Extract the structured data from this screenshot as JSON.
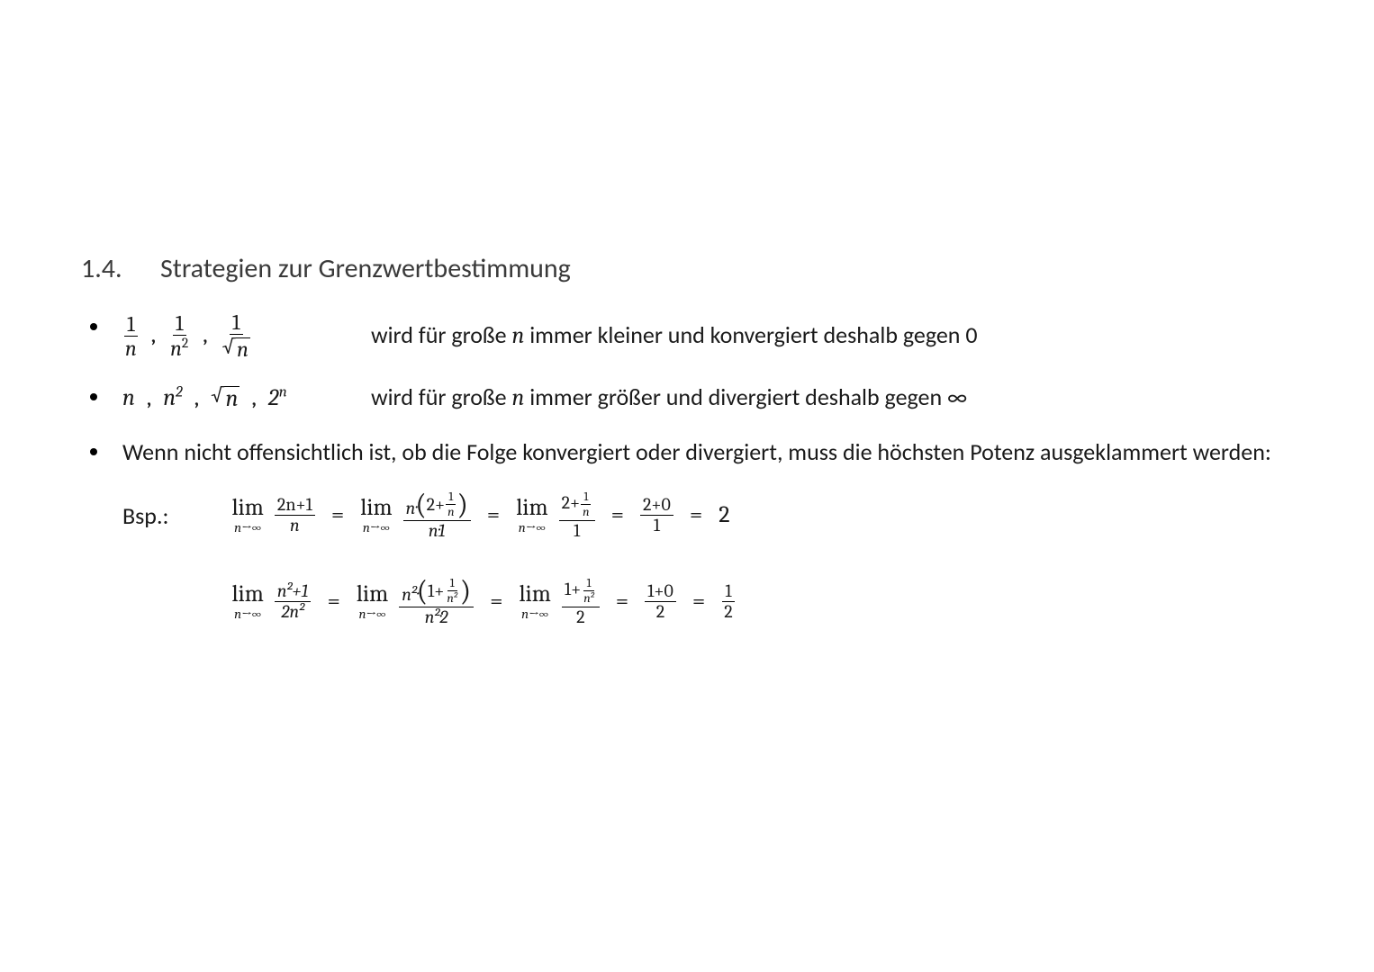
{
  "colors": {
    "background": "#ffffff",
    "text": "#1a1a1a",
    "heading": "#3a3a3a",
    "rule": "#000000"
  },
  "typography": {
    "body_family": "Calibri",
    "math_family": "Cambria Math",
    "heading_size_pt": 22,
    "body_size_pt": 19,
    "math_sub_size_pt": 11
  },
  "heading": {
    "number": "1.4.",
    "title": "Strategien zur Grenzwertbestimmung"
  },
  "bullets": {
    "b1": {
      "terms": [
        "1/n",
        "1/n^2",
        "1/√n"
      ],
      "desc_pre": "wird für große ",
      "desc_var": "n",
      "desc_post": " immer kleiner und konvergiert deshalb gegen 0"
    },
    "b2": {
      "terms": [
        "n",
        "n^2",
        "√n",
        "2^n"
      ],
      "desc_pre": "wird für große ",
      "desc_var": "n",
      "desc_post": " immer größer und divergiert deshalb gegen ∞"
    },
    "b3": {
      "text": "Wenn nicht offensichtlich ist, ob die Folge konvergiert oder divergiert, muss die höchsten Potenz ausgeklammert werden:"
    }
  },
  "example_label": "Bsp.:",
  "lim_word": "lim",
  "lim_sub": "n→∞",
  "equations": {
    "eq1": {
      "steps": [
        {
          "num": "2n+1",
          "den": "n"
        },
        {
          "num_outer": "n·",
          "num_inner_top": "1",
          "num_inner_bot": "n",
          "num_inner_pre": "2+",
          "den": "n·1"
        },
        {
          "num_pre": "2+",
          "num_top": "1",
          "num_bot": "n",
          "den": "1"
        },
        {
          "num": "2+0",
          "den": "1"
        }
      ],
      "result": "2"
    },
    "eq2": {
      "steps": [
        {
          "num": "n²+1",
          "den": "2n²"
        },
        {
          "num_outer": "n²·",
          "num_inner_pre": "1+",
          "num_inner_top": "1",
          "num_inner_bot": "n²",
          "den": "n²·2"
        },
        {
          "num_pre": "1+",
          "num_top": "1",
          "num_bot": "n²",
          "den": "2"
        },
        {
          "num": "1+0",
          "den": "2"
        }
      ],
      "result_top": "1",
      "result_bot": "2"
    }
  }
}
